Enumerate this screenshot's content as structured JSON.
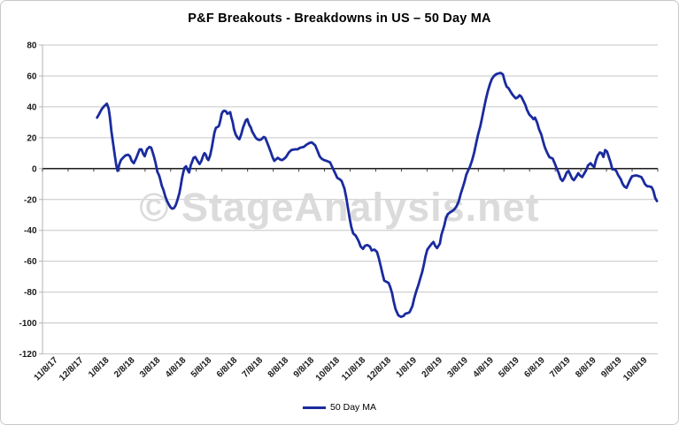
{
  "chart": {
    "title": "P&F Breakouts - Breakdowns in US – 50 Day MA",
    "watermark": "© StageAnalysis.net",
    "legend": {
      "label": "50 Day MA"
    }
  },
  "colors": {
    "line": "#1a2b9e",
    "grid": "#c6c6c6",
    "zero_axis": "#000000",
    "axis_line": "#b3b3b3",
    "tick": "#404040",
    "label": "#1a1a1a",
    "watermark": "#dbdbdb",
    "border": "#c9c9c9"
  },
  "chart_data": {
    "type": "line",
    "title": "P&F Breakouts - Breakdowns in US – 50 Day MA",
    "xlabel": "",
    "ylabel": "",
    "ylim": [
      -120,
      80
    ],
    "y_tick_step": 20,
    "grid": true,
    "legend_position": "bottom",
    "watermark": "© StageAnalysis.net",
    "categories": [
      "11/8/17",
      "12/8/17",
      "1/8/18",
      "2/8/18",
      "3/8/18",
      "4/8/18",
      "5/8/18",
      "6/8/18",
      "7/8/18",
      "8/8/18",
      "9/8/18",
      "10/8/18",
      "11/8/18",
      "12/8/18",
      "1/8/19",
      "2/8/19",
      "3/8/19",
      "4/8/19",
      "5/8/19",
      "6/8/19",
      "7/8/19",
      "8/8/19",
      "9/8/19",
      "10/8/19"
    ],
    "x_unit": "months since 11/8/17 (category axis position)",
    "series": [
      {
        "name": "50 Day MA",
        "color": "#1a2b9e",
        "points": [
          [
            2.13,
            33
          ],
          [
            2.2,
            35
          ],
          [
            2.31,
            38.5
          ],
          [
            2.41,
            40.5
          ],
          [
            2.51,
            42
          ],
          [
            2.58,
            39
          ],
          [
            2.63,
            33
          ],
          [
            2.69,
            24
          ],
          [
            2.75,
            17
          ],
          [
            2.82,
            8.5
          ],
          [
            2.88,
            2
          ],
          [
            2.93,
            -1.5
          ],
          [
            3.0,
            3
          ],
          [
            3.06,
            5.5
          ],
          [
            3.17,
            7.5
          ],
          [
            3.24,
            8.5
          ],
          [
            3.34,
            9
          ],
          [
            3.41,
            8
          ],
          [
            3.48,
            5
          ],
          [
            3.56,
            3.5
          ],
          [
            3.65,
            6.5
          ],
          [
            3.72,
            9.5
          ],
          [
            3.79,
            12.5
          ],
          [
            3.86,
            12.5
          ],
          [
            3.93,
            9.5
          ],
          [
            3.99,
            8
          ],
          [
            4.08,
            12.5
          ],
          [
            4.17,
            14
          ],
          [
            4.24,
            13.5
          ],
          [
            4.3,
            10.5
          ],
          [
            4.37,
            6.5
          ],
          [
            4.42,
            3
          ],
          [
            4.48,
            -2
          ],
          [
            4.55,
            -4.5
          ],
          [
            4.6,
            -7.5
          ],
          [
            4.65,
            -11
          ],
          [
            4.72,
            -14
          ],
          [
            4.79,
            -18
          ],
          [
            4.86,
            -21
          ],
          [
            4.92,
            -23
          ],
          [
            4.99,
            -25
          ],
          [
            5.06,
            -26
          ],
          [
            5.13,
            -25.5
          ],
          [
            5.2,
            -23.5
          ],
          [
            5.27,
            -20
          ],
          [
            5.34,
            -16
          ],
          [
            5.39,
            -11.5
          ],
          [
            5.44,
            -6.5
          ],
          [
            5.49,
            -2.5
          ],
          [
            5.54,
            0.5
          ],
          [
            5.6,
            1.5
          ],
          [
            5.65,
            -0.5
          ],
          [
            5.72,
            -2.5
          ],
          [
            5.78,
            2
          ],
          [
            5.84,
            4.5
          ],
          [
            5.89,
            7
          ],
          [
            5.96,
            7.5
          ],
          [
            6.03,
            5.5
          ],
          [
            6.08,
            4
          ],
          [
            6.13,
            3
          ],
          [
            6.2,
            5
          ],
          [
            6.27,
            8.5
          ],
          [
            6.32,
            10
          ],
          [
            6.37,
            9
          ],
          [
            6.42,
            6.5
          ],
          [
            6.47,
            5.5
          ],
          [
            6.54,
            8.5
          ],
          [
            6.61,
            14
          ],
          [
            6.66,
            19
          ],
          [
            6.71,
            23.5
          ],
          [
            6.77,
            26.5
          ],
          [
            6.84,
            27
          ],
          [
            6.89,
            28
          ],
          [
            6.94,
            31.5
          ],
          [
            6.99,
            35.5
          ],
          [
            7.04,
            37
          ],
          [
            7.09,
            37.5
          ],
          [
            7.16,
            37
          ],
          [
            7.21,
            35.5
          ],
          [
            7.27,
            36
          ],
          [
            7.32,
            36.5
          ],
          [
            7.37,
            33
          ],
          [
            7.42,
            30
          ],
          [
            7.47,
            25.5
          ],
          [
            7.54,
            22
          ],
          [
            7.61,
            20
          ],
          [
            7.68,
            19
          ],
          [
            7.75,
            22
          ],
          [
            7.82,
            26.5
          ],
          [
            7.89,
            29.5
          ],
          [
            7.94,
            31.5
          ],
          [
            7.99,
            32
          ],
          [
            8.06,
            28.5
          ],
          [
            8.13,
            26.5
          ],
          [
            8.18,
            24
          ],
          [
            8.25,
            22
          ],
          [
            8.32,
            20
          ],
          [
            8.38,
            19
          ],
          [
            8.47,
            18.5
          ],
          [
            8.54,
            19
          ],
          [
            8.63,
            20.5
          ],
          [
            8.69,
            20
          ],
          [
            8.76,
            17
          ],
          [
            8.83,
            14
          ],
          [
            8.9,
            11
          ],
          [
            8.97,
            7.5
          ],
          [
            9.04,
            5
          ],
          [
            9.11,
            6
          ],
          [
            9.18,
            7
          ],
          [
            9.26,
            6
          ],
          [
            9.33,
            5.5
          ],
          [
            9.4,
            6
          ],
          [
            9.5,
            7.5
          ],
          [
            9.61,
            10.5
          ],
          [
            9.71,
            12
          ],
          [
            9.85,
            12.5
          ],
          [
            9.95,
            12.5
          ],
          [
            10.05,
            13.5
          ],
          [
            10.19,
            14
          ],
          [
            10.3,
            15.5
          ],
          [
            10.4,
            16.5
          ],
          [
            10.5,
            17
          ],
          [
            10.57,
            16
          ],
          [
            10.64,
            15
          ],
          [
            10.74,
            11
          ],
          [
            10.81,
            8
          ],
          [
            10.88,
            6.5
          ],
          [
            10.98,
            5.5
          ],
          [
            11.09,
            5
          ],
          [
            11.22,
            4
          ],
          [
            11.33,
            0
          ],
          [
            11.43,
            -3.5
          ],
          [
            11.5,
            -6
          ],
          [
            11.6,
            -7
          ],
          [
            11.67,
            -8
          ],
          [
            11.78,
            -13
          ],
          [
            11.84,
            -18
          ],
          [
            11.91,
            -25
          ],
          [
            11.98,
            -32
          ],
          [
            12.05,
            -38
          ],
          [
            12.12,
            -42
          ],
          [
            12.22,
            -43.5
          ],
          [
            12.33,
            -47
          ],
          [
            12.41,
            -50.5
          ],
          [
            12.5,
            -52
          ],
          [
            12.58,
            -50
          ],
          [
            12.67,
            -49.5
          ],
          [
            12.77,
            -50.5
          ],
          [
            12.84,
            -53
          ],
          [
            12.95,
            -52.5
          ],
          [
            13.05,
            -54
          ],
          [
            13.12,
            -58
          ],
          [
            13.19,
            -63
          ],
          [
            13.26,
            -68
          ],
          [
            13.33,
            -72.5
          ],
          [
            13.43,
            -73.5
          ],
          [
            13.5,
            -74
          ],
          [
            13.57,
            -77
          ],
          [
            13.64,
            -81
          ],
          [
            13.7,
            -86
          ],
          [
            13.77,
            -91
          ],
          [
            13.88,
            -95
          ],
          [
            13.98,
            -96
          ],
          [
            14.08,
            -95.5
          ],
          [
            14.15,
            -94
          ],
          [
            14.26,
            -93.5
          ],
          [
            14.32,
            -93
          ],
          [
            14.43,
            -89
          ],
          [
            14.5,
            -84
          ],
          [
            14.58,
            -79.5
          ],
          [
            14.67,
            -75
          ],
          [
            14.74,
            -71
          ],
          [
            14.81,
            -67
          ],
          [
            14.88,
            -62
          ],
          [
            14.94,
            -57
          ],
          [
            15.01,
            -52.5
          ],
          [
            15.12,
            -50
          ],
          [
            15.19,
            -48.5
          ],
          [
            15.25,
            -47.5
          ],
          [
            15.32,
            -50
          ],
          [
            15.39,
            -51.5
          ],
          [
            15.5,
            -48.5
          ],
          [
            15.56,
            -43
          ],
          [
            15.67,
            -37
          ],
          [
            15.74,
            -32
          ],
          [
            15.81,
            -29.5
          ],
          [
            15.89,
            -28.5
          ],
          [
            15.98,
            -27.5
          ],
          [
            16.06,
            -26.5
          ],
          [
            16.15,
            -24.5
          ],
          [
            16.24,
            -21
          ],
          [
            16.32,
            -16
          ],
          [
            16.39,
            -12.5
          ],
          [
            16.46,
            -8.5
          ],
          [
            16.53,
            -4
          ],
          [
            16.61,
            -1
          ],
          [
            16.67,
            1
          ],
          [
            16.75,
            5
          ],
          [
            16.84,
            10.5
          ],
          [
            16.91,
            16
          ],
          [
            16.99,
            22
          ],
          [
            17.08,
            27.5
          ],
          [
            17.15,
            33
          ],
          [
            17.22,
            39
          ],
          [
            17.29,
            44.5
          ],
          [
            17.37,
            50
          ],
          [
            17.46,
            55
          ],
          [
            17.53,
            58
          ],
          [
            17.61,
            60
          ],
          [
            17.7,
            61.2
          ],
          [
            17.78,
            61.6
          ],
          [
            17.87,
            62
          ],
          [
            17.96,
            61
          ],
          [
            18.04,
            56
          ],
          [
            18.11,
            53
          ],
          [
            18.18,
            52
          ],
          [
            18.27,
            49.5
          ],
          [
            18.35,
            47.5
          ],
          [
            18.46,
            45.5
          ],
          [
            18.53,
            46
          ],
          [
            18.61,
            47.5
          ],
          [
            18.68,
            46.5
          ],
          [
            18.77,
            43.5
          ],
          [
            18.84,
            41
          ],
          [
            18.9,
            38
          ],
          [
            18.99,
            35
          ],
          [
            19.08,
            33.5
          ],
          [
            19.15,
            32
          ],
          [
            19.21,
            33
          ],
          [
            19.3,
            29.5
          ],
          [
            19.37,
            25.5
          ],
          [
            19.46,
            22
          ],
          [
            19.52,
            18
          ],
          [
            19.59,
            14
          ],
          [
            19.68,
            10.5
          ],
          [
            19.77,
            7.5
          ],
          [
            19.83,
            7
          ],
          [
            19.9,
            6.5
          ],
          [
            19.99,
            3
          ],
          [
            20.06,
            0
          ],
          [
            20.14,
            -3
          ],
          [
            20.21,
            -6.5
          ],
          [
            20.28,
            -8
          ],
          [
            20.36,
            -6
          ],
          [
            20.45,
            -2.5
          ],
          [
            20.52,
            -1.5
          ],
          [
            20.59,
            -4
          ],
          [
            20.66,
            -6.5
          ],
          [
            20.73,
            -7.5
          ],
          [
            20.83,
            -5
          ],
          [
            20.9,
            -3
          ],
          [
            20.97,
            -4.5
          ],
          [
            21.05,
            -5.5
          ],
          [
            21.14,
            -3
          ],
          [
            21.21,
            -1
          ],
          [
            21.28,
            2
          ],
          [
            21.38,
            3.5
          ],
          [
            21.45,
            2
          ],
          [
            21.52,
            1
          ],
          [
            21.59,
            5.5
          ],
          [
            21.66,
            8.5
          ],
          [
            21.74,
            10.5
          ],
          [
            21.81,
            10
          ],
          [
            21.88,
            7.5
          ],
          [
            21.95,
            12
          ],
          [
            22.02,
            11
          ],
          [
            22.09,
            7.5
          ],
          [
            22.16,
            4
          ],
          [
            22.23,
            -0.5
          ],
          [
            22.31,
            -0.5
          ],
          [
            22.38,
            -1.5
          ],
          [
            22.45,
            -4
          ],
          [
            22.56,
            -7
          ],
          [
            22.62,
            -9.5
          ],
          [
            22.69,
            -11.5
          ],
          [
            22.78,
            -12.5
          ],
          [
            22.86,
            -9.5
          ],
          [
            22.93,
            -7
          ],
          [
            23.0,
            -5
          ],
          [
            23.11,
            -4.5
          ],
          [
            23.19,
            -4.5
          ],
          [
            23.28,
            -5
          ],
          [
            23.36,
            -5.5
          ],
          [
            23.43,
            -7.5
          ],
          [
            23.5,
            -10
          ],
          [
            23.59,
            -11.5
          ],
          [
            23.67,
            -11.5
          ],
          [
            23.76,
            -12
          ],
          [
            23.83,
            -14.5
          ],
          [
            23.9,
            -19
          ],
          [
            23.97,
            -21
          ]
        ]
      }
    ]
  }
}
